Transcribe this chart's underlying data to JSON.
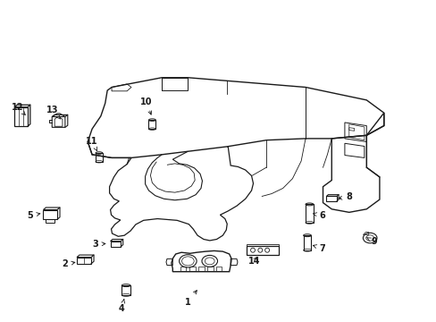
{
  "background_color": "#ffffff",
  "line_color": "#1a1a1a",
  "figsize": [
    4.89,
    3.6
  ],
  "dpi": 100,
  "label_positions": {
    "1": {
      "txt": [
        0.43,
        0.06
      ],
      "arr": [
        0.455,
        0.105
      ]
    },
    "2": {
      "txt": [
        0.148,
        0.178
      ],
      "arr": [
        0.178,
        0.186
      ]
    },
    "3": {
      "txt": [
        0.218,
        0.24
      ],
      "arr": [
        0.248,
        0.243
      ]
    },
    "4": {
      "txt": [
        0.278,
        0.04
      ],
      "arr": [
        0.285,
        0.078
      ]
    },
    "5": {
      "txt": [
        0.068,
        0.33
      ],
      "arr": [
        0.098,
        0.338
      ]
    },
    "6": {
      "txt": [
        0.738,
        0.33
      ],
      "arr": [
        0.71,
        0.338
      ]
    },
    "7": {
      "txt": [
        0.738,
        0.228
      ],
      "arr": [
        0.71,
        0.24
      ]
    },
    "8": {
      "txt": [
        0.8,
        0.388
      ],
      "arr": [
        0.768,
        0.382
      ]
    },
    "9": {
      "txt": [
        0.858,
        0.248
      ],
      "arr": [
        0.84,
        0.262
      ]
    },
    "10": {
      "txt": [
        0.335,
        0.685
      ],
      "arr": [
        0.348,
        0.635
      ]
    },
    "11": {
      "txt": [
        0.21,
        0.562
      ],
      "arr": [
        0.222,
        0.53
      ]
    },
    "12": {
      "txt": [
        0.038,
        0.668
      ],
      "arr": [
        0.058,
        0.642
      ]
    },
    "13": {
      "txt": [
        0.118,
        0.658
      ],
      "arr": [
        0.138,
        0.63
      ]
    },
    "14": {
      "txt": [
        0.582,
        0.188
      ],
      "arr": [
        0.594,
        0.208
      ]
    }
  }
}
